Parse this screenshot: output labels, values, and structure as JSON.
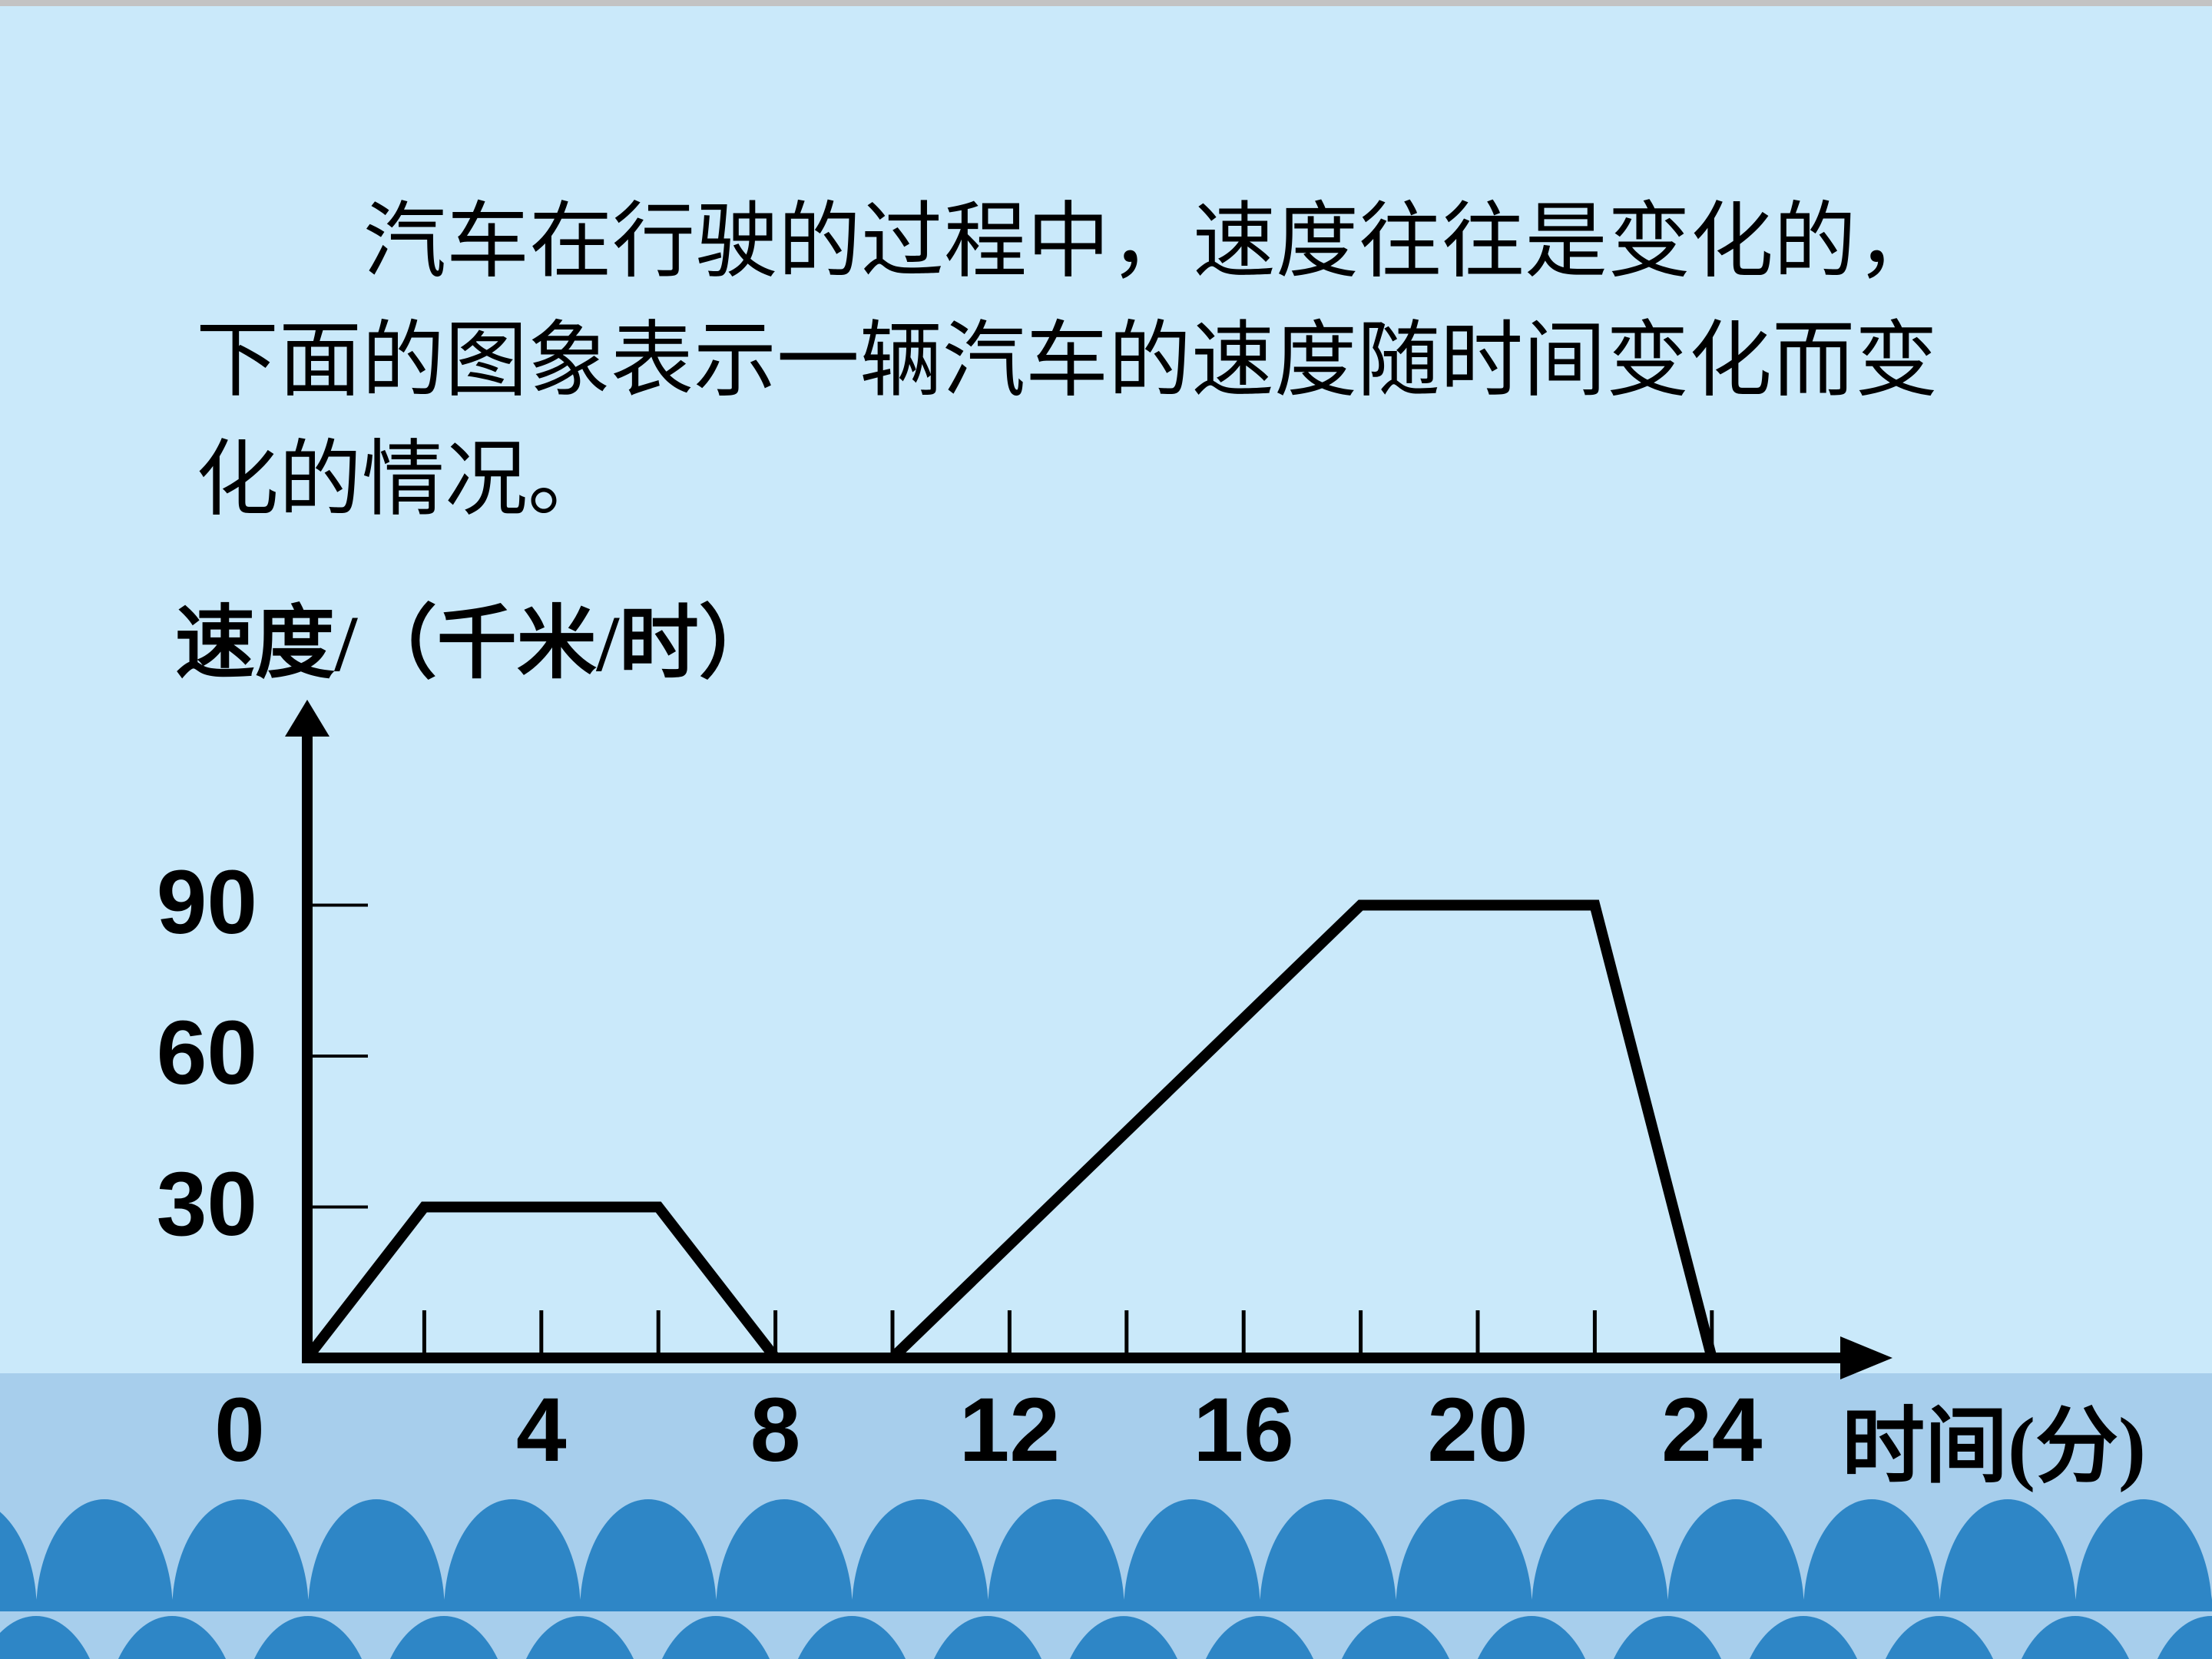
{
  "colors": {
    "background": "#cae9fa",
    "footer_band": "#a7ceec",
    "wave": "#2e86c6",
    "ink": "#000000",
    "top_edge": "#c3c3c3"
  },
  "intro": {
    "lines": [
      "汽车在行驶的过程中，速度往往是变化的，",
      "下面的图象表示一辆汽车的速度随时间变化而变",
      "化的情况。"
    ]
  },
  "chart_data": {
    "type": "line",
    "title": "",
    "xlabel": "时间(分)",
    "ylabel": "速度/（千米/时）",
    "x_tick_labels": [
      0,
      4,
      8,
      12,
      16,
      20,
      24
    ],
    "x_minor_tick_step": 2,
    "y_ticks": [
      30,
      60,
      90
    ],
    "xlim": [
      0,
      26
    ],
    "ylim": [
      0,
      110
    ],
    "grid": false,
    "legend": false,
    "points": [
      [
        0,
        0
      ],
      [
        2,
        30
      ],
      [
        6,
        30
      ],
      [
        8,
        0
      ],
      [
        10,
        0
      ],
      [
        18,
        90
      ],
      [
        22,
        90
      ],
      [
        24,
        0
      ]
    ]
  }
}
